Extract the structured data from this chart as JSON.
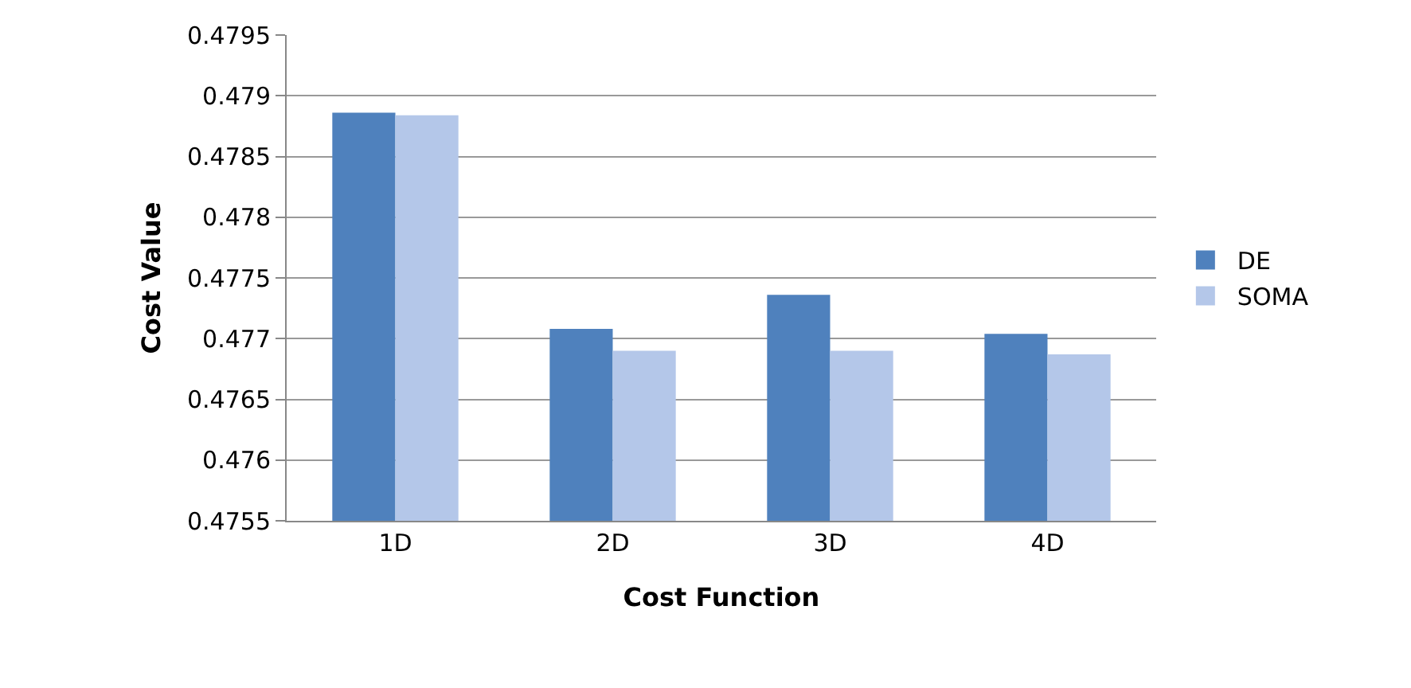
{
  "chart_data": {
    "type": "bar",
    "xlabel": "Cost Function",
    "ylabel": "Cost Value",
    "categories": [
      "1D",
      "2D",
      "3D",
      "4D"
    ],
    "series": [
      {
        "name": "DE",
        "color": "#4f81bd",
        "values": [
          0.47886,
          0.47708,
          0.47736,
          0.47704
        ]
      },
      {
        "name": "SOMA",
        "color": "#b4c7e9",
        "values": [
          0.47884,
          0.4769,
          0.4769,
          0.47687
        ]
      }
    ],
    "ylim": [
      0.4755,
      0.4795
    ],
    "yticks": [
      0.4755,
      0.476,
      0.4765,
      0.477,
      0.4775,
      0.478,
      0.4785,
      0.479,
      0.4795
    ],
    "grid": "y",
    "legend": "right"
  }
}
